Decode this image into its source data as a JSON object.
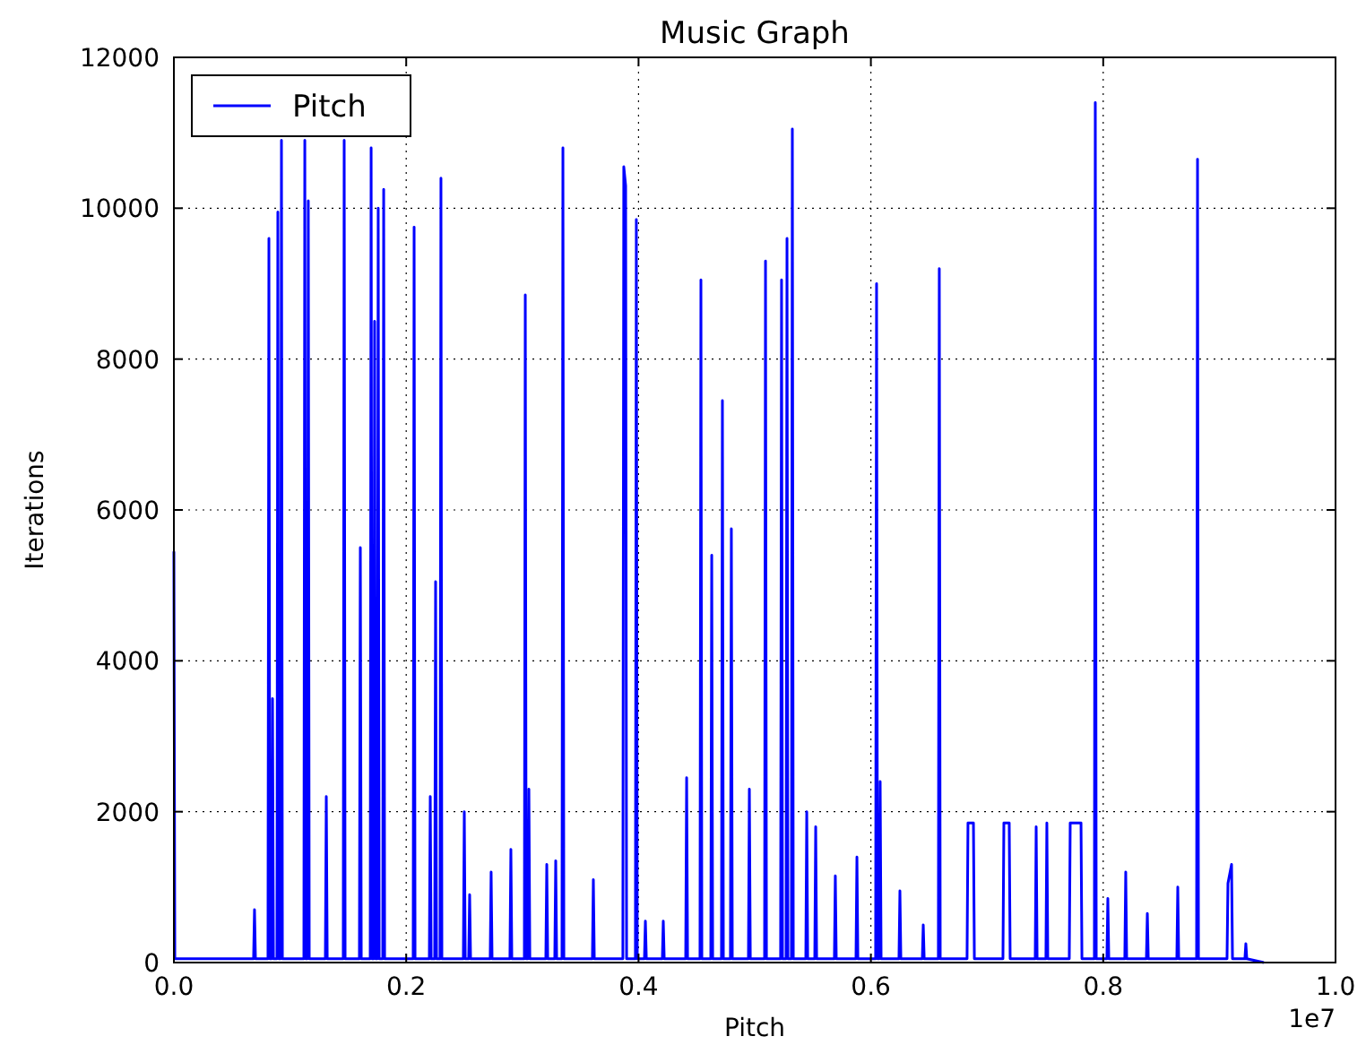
{
  "chart_data": {
    "type": "line",
    "title": "Music Graph",
    "xlabel": "Pitch",
    "ylabel": "Iterations",
    "annotations": [
      "1e7"
    ],
    "xlim": [
      0,
      1
    ],
    "xticks": [
      {
        "value": 0,
        "label": "0.0"
      },
      0.2,
      0.4,
      0.6,
      0.8,
      {
        "value": 1,
        "label": "1.0"
      }
    ],
    "ylim": [
      0,
      12000
    ],
    "yticks": [
      0,
      2000,
      4000,
      6000,
      8000,
      10000,
      12000
    ],
    "grid": true,
    "legend": "top left",
    "line_style": "solid",
    "series": [
      {
        "name": "Pitch",
        "color": "#0000ff",
        "x": [
          0,
          0.0008,
          0.0686,
          0.0694,
          0.0702,
          0.081,
          0.0818,
          0.0826,
          0.0841,
          0.0849,
          0.0857,
          0.0887,
          0.0895,
          0.0903,
          0.0918,
          0.0926,
          0.0934,
          0.1119,
          0.1127,
          0.1135,
          0.1149,
          0.1157,
          0.1165,
          0.1304,
          0.1312,
          0.132,
          0.1458,
          0.1466,
          0.1474,
          0.1597,
          0.1605,
          0.1613,
          0.169,
          0.1698,
          0.1706,
          0.172,
          0.1728,
          0.1736,
          0.1751,
          0.1759,
          0.1767,
          0.1798,
          0.1806,
          0.1814,
          0.206,
          0.2068,
          0.2076,
          0.2199,
          0.2207,
          0.2215,
          0.2245,
          0.2253,
          0.2261,
          0.2291,
          0.2299,
          0.2307,
          0.2492,
          0.25,
          0.2508,
          0.2538,
          0.2546,
          0.2554,
          0.2723,
          0.2731,
          0.2739,
          0.2893,
          0.2901,
          0.2909,
          0.3017,
          0.3025,
          0.3033,
          0.3048,
          0.3056,
          0.3064,
          0.3202,
          0.321,
          0.3218,
          0.3279,
          0.3287,
          0.3295,
          0.3341,
          0.3349,
          0.3357,
          0.3603,
          0.3611,
          0.3619,
          0.3865,
          0.3873,
          0.3889,
          0.3897,
          0.3973,
          0.3981,
          0.3989,
          0.4051,
          0.4059,
          0.4067,
          0.4205,
          0.4213,
          0.4221,
          0.4406,
          0.4414,
          0.4422,
          0.4529,
          0.4537,
          0.4545,
          0.4622,
          0.463,
          0.4638,
          0.4714,
          0.4722,
          0.473,
          0.4791,
          0.4799,
          0.4807,
          0.4946,
          0.4954,
          0.4962,
          0.5085,
          0.5093,
          0.5101,
          0.5223,
          0.5231,
          0.5239,
          0.527,
          0.5278,
          0.5286,
          0.5316,
          0.5324,
          0.5332,
          0.544,
          0.5448,
          0.5456,
          0.5517,
          0.5525,
          0.5533,
          0.5686,
          0.5694,
          0.5702,
          0.5872,
          0.588,
          0.5888,
          0.6041,
          0.6049,
          0.6057,
          0.6072,
          0.608,
          0.6088,
          0.6242,
          0.625,
          0.6258,
          0.6443,
          0.6451,
          0.6459,
          0.6581,
          0.6589,
          0.6597,
          0.6828,
          0.6836,
          0.6883,
          0.6891,
          0.7137,
          0.7145,
          0.7191,
          0.7199,
          0.7415,
          0.7423,
          0.7431,
          0.7507,
          0.7515,
          0.7523,
          0.7708,
          0.7716,
          0.7809,
          0.7817,
          0.7924,
          0.7932,
          0.794,
          0.8032,
          0.804,
          0.8048,
          0.8186,
          0.8194,
          0.8202,
          0.8372,
          0.838,
          0.8388,
          0.8634,
          0.8642,
          0.865,
          0.8804,
          0.8812,
          0.882,
          0.9066,
          0.9074,
          0.9105,
          0.9113,
          0.922,
          0.9228,
          0.9236,
          0.9383
        ],
        "values": [
          5450,
          50,
          50,
          700,
          50,
          50,
          9600,
          50,
          50,
          3500,
          50,
          50,
          9950,
          50,
          50,
          10900,
          50,
          50,
          10900,
          50,
          50,
          10100,
          50,
          50,
          2200,
          50,
          50,
          10900,
          50,
          50,
          5500,
          50,
          50,
          10800,
          50,
          50,
          8500,
          50,
          50,
          10000,
          50,
          50,
          10250,
          50,
          50,
          9750,
          50,
          50,
          2200,
          50,
          50,
          5050,
          50,
          50,
          10400,
          50,
          50,
          2000,
          50,
          50,
          900,
          50,
          50,
          1200,
          50,
          50,
          1500,
          50,
          50,
          8850,
          50,
          50,
          2300,
          50,
          50,
          1300,
          50,
          50,
          1350,
          50,
          50,
          10800,
          50,
          50,
          1100,
          50,
          50,
          10550,
          10300,
          50,
          50,
          9850,
          50,
          50,
          550,
          50,
          50,
          550,
          50,
          50,
          2450,
          50,
          50,
          9050,
          50,
          50,
          5400,
          50,
          50,
          7450,
          50,
          50,
          5750,
          50,
          50,
          2300,
          50,
          50,
          9300,
          50,
          50,
          9050,
          50,
          50,
          9600,
          50,
          50,
          11050,
          50,
          50,
          2000,
          50,
          50,
          1800,
          50,
          50,
          1150,
          50,
          50,
          1400,
          50,
          50,
          9000,
          50,
          50,
          2400,
          50,
          50,
          950,
          50,
          50,
          500,
          50,
          50,
          9200,
          50,
          50,
          1850,
          1850,
          50,
          50,
          1850,
          1850,
          50,
          50,
          1800,
          50,
          50,
          1850,
          50,
          50,
          1850,
          1850,
          50,
          50,
          11400,
          50,
          50,
          850,
          50,
          50,
          1200,
          50,
          50,
          650,
          50,
          50,
          1000,
          50,
          50,
          10650,
          50,
          50,
          1050,
          1300,
          50,
          50,
          250,
          50,
          0
        ]
      }
    ]
  }
}
